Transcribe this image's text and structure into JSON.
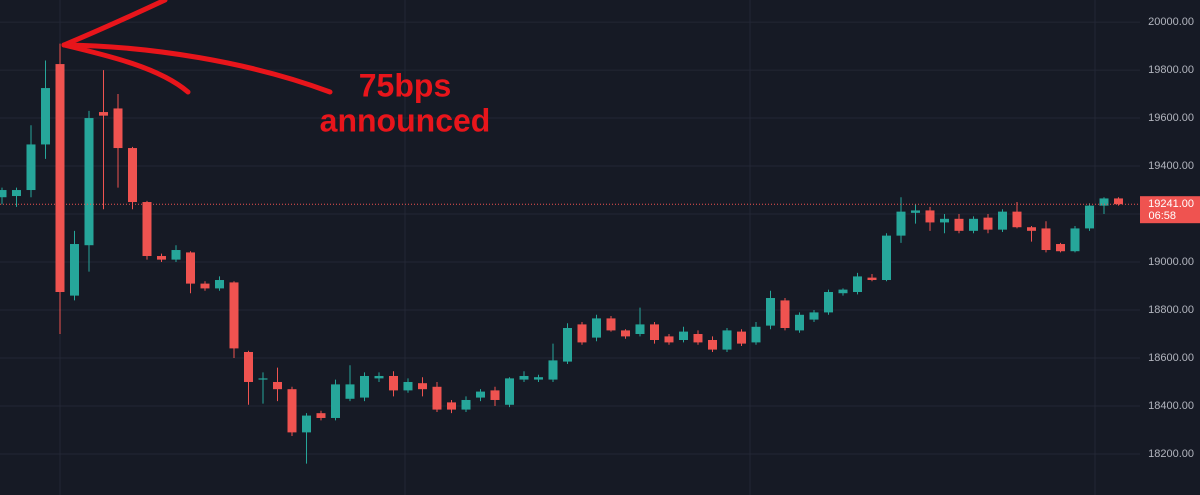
{
  "chart_data": {
    "type": "candlestick",
    "open": [
      19270,
      19275,
      19300,
      19490,
      19825,
      18860,
      19070,
      19625,
      19640,
      19475,
      19250,
      19025,
      19010,
      19040,
      18910,
      18890,
      18915,
      18625,
      18510,
      18500,
      18470,
      18290,
      18370,
      18350,
      18430,
      18435,
      18515,
      18525,
      18465,
      18495,
      18480,
      18415,
      18385,
      18435,
      18465,
      18405,
      18510,
      18510,
      18510,
      18585,
      18740,
      18685,
      18765,
      18715,
      18700,
      18740,
      18690,
      18675,
      18700,
      18675,
      18635,
      18710,
      18665,
      18735,
      18840,
      18715,
      18760,
      18790,
      18870,
      18875,
      18935,
      18925,
      19110,
      19205,
      19215,
      19165,
      19180,
      19130,
      19185,
      19135,
      19210,
      19145,
      19140,
      19075,
      19045,
      19140,
      19235,
      19265
    ],
    "high": [
      19310,
      19310,
      19570,
      19840,
      19910,
      19130,
      19630,
      19800,
      19700,
      19480,
      19255,
      19035,
      19070,
      19045,
      18920,
      18940,
      18920,
      18630,
      18540,
      18560,
      18480,
      18370,
      18380,
      18510,
      18570,
      18540,
      18540,
      18545,
      18515,
      18520,
      18500,
      18425,
      18440,
      18470,
      18480,
      18520,
      18545,
      18530,
      18660,
      18745,
      18750,
      18780,
      18775,
      18720,
      18810,
      18750,
      18700,
      18730,
      18715,
      18690,
      18725,
      18720,
      18750,
      18880,
      18850,
      18790,
      18800,
      18885,
      18890,
      18955,
      18950,
      19120,
      19270,
      19240,
      19230,
      19200,
      19200,
      19190,
      19200,
      19220,
      19250,
      19150,
      19170,
      19080,
      19150,
      19245,
      19270,
      19270
    ],
    "low": [
      19240,
      19230,
      19270,
      19430,
      18700,
      18840,
      18960,
      19220,
      19310,
      19220,
      19010,
      19000,
      19000,
      18870,
      18880,
      18880,
      18600,
      18405,
      18410,
      18420,
      18275,
      18160,
      18340,
      18340,
      18420,
      18420,
      18500,
      18440,
      18455,
      18440,
      18375,
      18370,
      18375,
      18420,
      18400,
      18395,
      18500,
      18500,
      18500,
      18575,
      18655,
      18670,
      18710,
      18680,
      18690,
      18660,
      18655,
      18665,
      18655,
      18625,
      18625,
      18650,
      18655,
      18720,
      18715,
      18705,
      18750,
      18780,
      18860,
      18865,
      18920,
      18920,
      19080,
      19160,
      19130,
      19120,
      19120,
      19120,
      19120,
      19125,
      19140,
      19085,
      19040,
      19040,
      19040,
      19130,
      19200,
      19235
    ],
    "close": [
      19300,
      19300,
      19490,
      19725,
      18875,
      19075,
      19600,
      19610,
      19475,
      19250,
      19025,
      19010,
      19050,
      18910,
      18890,
      18925,
      18640,
      18500,
      18515,
      18470,
      18290,
      18360,
      18350,
      18490,
      18490,
      18525,
      18525,
      18465,
      18500,
      18470,
      18385,
      18385,
      18425,
      18460,
      18425,
      18515,
      18525,
      18520,
      18590,
      18725,
      18665,
      18765,
      18715,
      18690,
      18740,
      18675,
      18665,
      18710,
      18665,
      18635,
      18715,
      18660,
      18730,
      18850,
      18725,
      18780,
      18790,
      18875,
      18885,
      18940,
      18925,
      19110,
      19210,
      19215,
      19165,
      19180,
      19130,
      19180,
      19135,
      19210,
      19145,
      19130,
      19050,
      19045,
      19140,
      19235,
      19265,
      19241
    ],
    "up_color": "#26a69a",
    "down_color": "#ef5350",
    "ylim": [
      18029,
      20092
    ],
    "yticks": [
      {
        "value": 18200,
        "label": "18200.00"
      },
      {
        "value": 18400,
        "label": "18400.00"
      },
      {
        "value": 18600,
        "label": "18600.00"
      },
      {
        "value": 18800,
        "label": "18800.00"
      },
      {
        "value": 19000,
        "label": "19000.00"
      },
      {
        "value": 19200,
        "label": "19200.00"
      },
      {
        "value": 19400,
        "label": "19400.00"
      },
      {
        "value": 19600,
        "label": "19600.00"
      },
      {
        "value": 19800,
        "label": "19800.00"
      },
      {
        "value": 20000,
        "label": "20000.00"
      }
    ],
    "grid": true,
    "last_price": {
      "value": 19241,
      "label": "19241.00"
    },
    "countdown": "06:58",
    "annotation": [
      "75bps",
      "announced"
    ]
  }
}
